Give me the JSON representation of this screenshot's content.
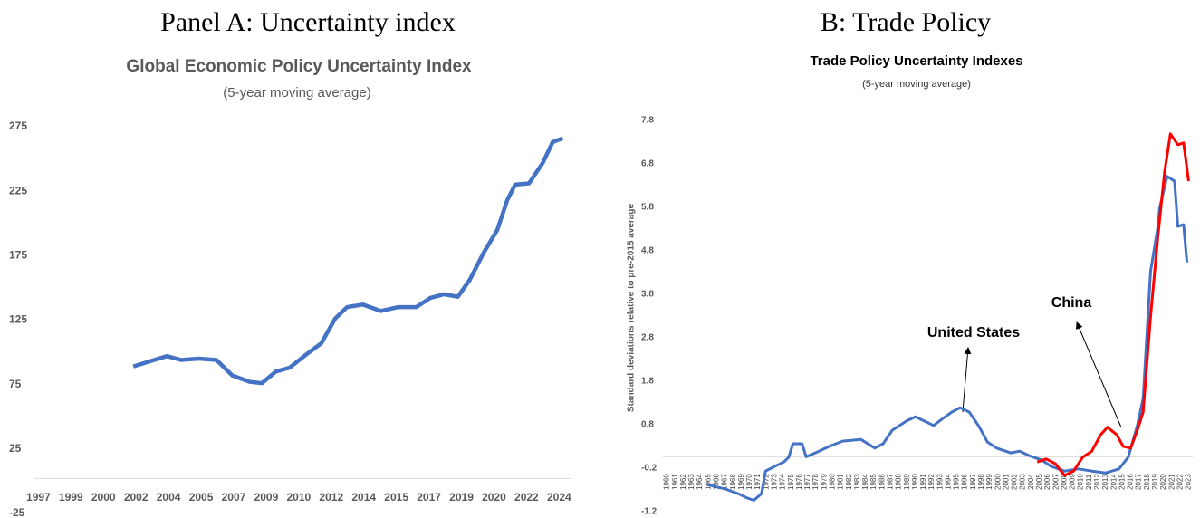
{
  "chart_data": [
    {
      "type": "line",
      "panel_title": "Panel A: Uncertainty index",
      "title": "Global Economic Policy Uncertainty Index",
      "subtitle": "(5-year moving average)",
      "xlim": [
        1997.5,
        2024.6
      ],
      "xticks": [
        {
          "value": 1997.7,
          "label": "1997"
        },
        {
          "value": 1999.345,
          "label": "1999"
        },
        {
          "value": 2000.99,
          "label": "2000"
        },
        {
          "value": 2002.635,
          "label": "2002"
        },
        {
          "value": 2004.28,
          "label": "2004"
        },
        {
          "value": 2005.925,
          "label": "2005"
        },
        {
          "value": 2007.57,
          "label": "2007"
        },
        {
          "value": 2009.215,
          "label": "2009"
        },
        {
          "value": 2010.86,
          "label": "2010"
        },
        {
          "value": 2012.505,
          "label": "2012"
        },
        {
          "value": 2014.15,
          "label": "2014"
        },
        {
          "value": 2015.795,
          "label": "2015"
        },
        {
          "value": 2017.44,
          "label": "2017"
        },
        {
          "value": 2019.085,
          "label": "2019"
        },
        {
          "value": 2020.73,
          "label": "2020"
        },
        {
          "value": 2022.375,
          "label": "2022"
        },
        {
          "value": 2024.02,
          "label": "2024"
        }
      ],
      "ylim": [
        -25,
        275
      ],
      "yticks": [
        -25,
        25,
        75,
        125,
        175,
        225,
        275
      ],
      "x": [
        2002.5,
        2004.2,
        2004.9,
        2005.8,
        2006.7,
        2007.5,
        2008.4,
        2009.0,
        2009.7,
        2010.4,
        2011.3,
        2012.0,
        2012.7,
        2013.3,
        2014.1,
        2015.0,
        2015.9,
        2016.8,
        2017.5,
        2018.2,
        2018.9,
        2019.5,
        2020.2,
        2020.9,
        2021.4,
        2021.8,
        2022.5,
        2023.2,
        2023.7,
        2024.2
      ],
      "series": [
        {
          "name": "Global Economic Policy Uncertainty Index",
          "color": "#4472c4",
          "values": [
            87,
            95,
            92,
            93,
            92,
            80,
            75,
            74,
            83,
            86,
            97,
            105,
            124,
            133,
            135,
            130,
            133,
            133,
            140,
            143,
            141,
            154,
            175,
            193,
            216,
            228,
            229,
            245,
            261,
            264
          ]
        }
      ]
    },
    {
      "type": "line",
      "panel_title": "B: Trade Policy",
      "title": "Trade Policy Uncertainty Indexes",
      "subtitle": "(5-year moving average)",
      "y_label": "Standard deviations relative to pre-2015 average",
      "xlim": [
        1959.5,
        2023.5
      ],
      "xticks": [
        1960,
        1961,
        1962,
        1963,
        1964,
        1965,
        1966,
        1967,
        1968,
        1969,
        1970,
        1971,
        1972,
        1973,
        1974,
        1975,
        1976,
        1977,
        1978,
        1979,
        1980,
        1981,
        1982,
        1983,
        1984,
        1985,
        1986,
        1987,
        1988,
        1989,
        1990,
        1991,
        1992,
        1993,
        1994,
        1995,
        1996,
        1997,
        1998,
        1999,
        2000,
        2001,
        2002,
        2003,
        2004,
        2005,
        2006,
        2007,
        2008,
        2009,
        2010,
        2011,
        2012,
        2013,
        2014,
        2015,
        2016,
        2017,
        2018,
        2019,
        2020,
        2021,
        2022,
        2023
      ],
      "ylim": [
        -1.2,
        7.8
      ],
      "yticks": [
        -1.2,
        -0.2,
        0.8,
        1.8,
        2.8,
        3.8,
        4.8,
        5.8,
        6.8,
        7.8
      ],
      "annotations": [
        "United States",
        "China"
      ],
      "series": [
        {
          "name": "United States",
          "color": "#4472c4",
          "x": [
            1964.8,
            1967.0,
            1968.6,
            1969.7,
            1970.5,
            1971.4,
            1971.9,
            1973.0,
            1974.1,
            1974.7,
            1975.2,
            1976.3,
            1976.8,
            1977.9,
            1979.6,
            1981.2,
            1983.4,
            1985.1,
            1986.1,
            1987.2,
            1988.9,
            1990.0,
            1991.1,
            1992.2,
            1993.3,
            1994.4,
            1995.4,
            1996.5,
            1997.6,
            1998.7,
            1999.8,
            2001.5,
            2002.6,
            2003.7,
            2005.3,
            2006.4,
            2008.0,
            2009.7,
            2011.3,
            2013.0,
            2014.6,
            2015.7,
            2016.8,
            2017.5,
            2018.4,
            2019.3,
            2019.5,
            2020.4,
            2021.3,
            2021.7,
            2022.4,
            2022.8
          ],
          "values": [
            -0.64,
            -0.74,
            -0.85,
            -0.95,
            -1.0,
            -0.85,
            -0.33,
            -0.22,
            -0.12,
            -0.01,
            0.3,
            0.3,
            0.0,
            0.09,
            0.24,
            0.36,
            0.4,
            0.2,
            0.3,
            0.61,
            0.82,
            0.92,
            0.82,
            0.72,
            0.88,
            1.03,
            1.13,
            1.03,
            0.72,
            0.34,
            0.2,
            0.09,
            0.13,
            0.03,
            -0.08,
            -0.22,
            -0.33,
            -0.28,
            -0.33,
            -0.37,
            -0.28,
            -0.01,
            0.72,
            1.34,
            4.26,
            5.3,
            5.72,
            6.45,
            6.34,
            5.3,
            5.34,
            4.47
          ]
        },
        {
          "name": "China",
          "color": "#ff0000",
          "x": [
            2004.7,
            2005.8,
            2006.9,
            2008.0,
            2009.1,
            2010.2,
            2011.3,
            2012.4,
            2013.2,
            2014.3,
            2015.1,
            2016.0,
            2016.8,
            2017.5,
            2018.4,
            2019.3,
            2020.1,
            2020.8,
            2021.7,
            2022.4,
            2023.0
          ],
          "values": [
            -0.12,
            -0.05,
            -0.16,
            -0.43,
            -0.33,
            -0.01,
            0.13,
            0.51,
            0.68,
            0.51,
            0.24,
            0.2,
            0.61,
            1.03,
            3.22,
            5.09,
            6.55,
            7.43,
            7.18,
            7.22,
            6.34
          ]
        }
      ]
    }
  ]
}
